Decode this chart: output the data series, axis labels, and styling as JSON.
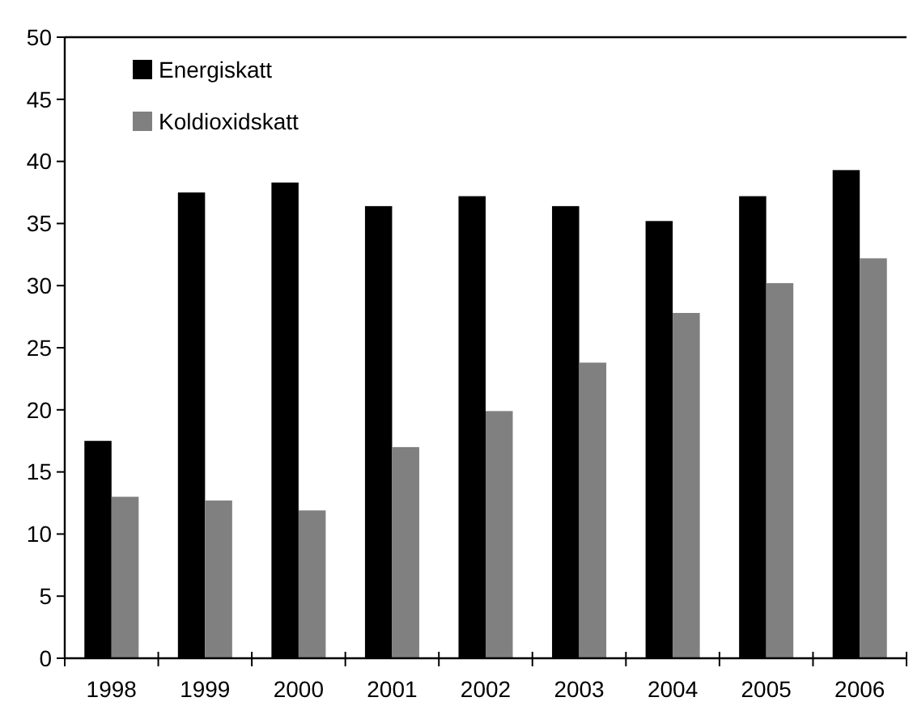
{
  "chart_data": {
    "type": "bar",
    "categories": [
      "1998",
      "1999",
      "2000",
      "2001",
      "2002",
      "2003",
      "2004",
      "2005",
      "2006"
    ],
    "series": [
      {
        "name": "Energiskatt",
        "color": "#000000",
        "values": [
          17.5,
          37.5,
          38.3,
          36.4,
          37.2,
          36.4,
          35.2,
          37.2,
          39.3
        ]
      },
      {
        "name": "Koldioxidskatt",
        "color": "#808080",
        "values": [
          13.0,
          12.7,
          11.9,
          17.0,
          19.9,
          23.8,
          27.8,
          30.2,
          32.2
        ]
      }
    ],
    "ylim": [
      0,
      50
    ],
    "yticks": [
      0,
      5,
      10,
      15,
      20,
      25,
      30,
      35,
      40,
      45,
      50
    ],
    "grid": false,
    "legend": "top left"
  }
}
